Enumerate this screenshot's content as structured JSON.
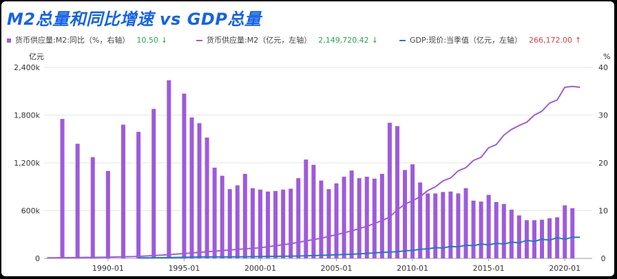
{
  "title": "M2总量和同比增速 vs GDP总量",
  "legend": [
    {
      "label": "货币供应量:M2:同比（%，右轴）",
      "value": "10.50",
      "arrow": "↓",
      "value_color": "#2aa34a",
      "swatch": "bar",
      "color": "#9d5bdc"
    },
    {
      "label": "货币供应量:M2（亿元，左轴）",
      "value": "2,149,720.42",
      "arrow": "↓",
      "value_color": "#2aa34a",
      "swatch": "line",
      "color": "#9d5bdc"
    },
    {
      "label": "GDP:现价:当季值（亿元，左轴）",
      "value": "266,172.00",
      "arrow": "↑",
      "value_color": "#e23b3b",
      "swatch": "line",
      "color": "#1d7ac9"
    }
  ],
  "left_axis_unit": "亿元",
  "right_axis_unit": "%",
  "colors": {
    "m2_yoy": "#9d5bdc",
    "m2_total": "#9d5bdc",
    "gdp": "#1d7ac9",
    "title": "#1663e6"
  },
  "chart_data": {
    "type": "bar",
    "title": "M2总量和同比增速 vs GDP总量",
    "x_tick_labels": [
      "1990-01",
      "1995-01",
      "2000-01",
      "2005-01",
      "2010-01",
      "2015-01",
      "2020-01"
    ],
    "x_range": [
      1985.8,
      2021.8
    ],
    "y_left": {
      "unit": "亿元",
      "range": [
        0,
        2400000
      ],
      "ticks": [
        0,
        600000,
        1200000,
        1800000,
        2400000
      ],
      "tick_labels": [
        "0",
        "600k",
        "1,200k",
        "1,800k",
        "2,400k"
      ]
    },
    "y_right": {
      "unit": "%",
      "range": [
        0,
        40
      ],
      "ticks": [
        0,
        10,
        20,
        30,
        40
      ],
      "tick_labels": [
        "0",
        "10",
        "20",
        "30",
        "40"
      ]
    },
    "grid": true,
    "legend_position": "top",
    "series": [
      {
        "name": "货币供应量:M2:同比（%，右轴）",
        "type": "bar",
        "axis": "right",
        "x": [
          1987.0,
          1988.0,
          1989.0,
          1990.0,
          1991.0,
          1992.0,
          1993.0,
          1994.0,
          1995.0,
          1995.5,
          1996.0,
          1996.5,
          1997.0,
          1997.5,
          1998.0,
          1998.5,
          1999.0,
          1999.5,
          2000.0,
          2000.5,
          2001.0,
          2001.5,
          2002.0,
          2002.5,
          2003.0,
          2003.5,
          2004.0,
          2004.5,
          2005.0,
          2005.5,
          2006.0,
          2006.5,
          2007.0,
          2007.5,
          2008.0,
          2008.5,
          2009.0,
          2009.5,
          2010.0,
          2010.5,
          2011.0,
          2011.5,
          2012.0,
          2012.5,
          2013.0,
          2013.5,
          2014.0,
          2014.5,
          2015.0,
          2015.5,
          2016.0,
          2016.5,
          2017.0,
          2017.5,
          2018.0,
          2018.5,
          2019.0,
          2019.5,
          2020.0,
          2020.5
        ],
        "values": [
          29.2,
          24.0,
          21.2,
          18.3,
          28.0,
          26.5,
          31.3,
          37.3,
          34.5,
          29.5,
          28.3,
          25.3,
          19.0,
          17.3,
          14.5,
          15.3,
          17.7,
          14.7,
          14.4,
          14.0,
          14.1,
          14.4,
          14.6,
          16.8,
          20.7,
          19.6,
          16.3,
          14.5,
          15.7,
          17.1,
          18.4,
          16.8,
          17.1,
          16.7,
          17.7,
          28.4,
          27.7,
          18.5,
          19.7,
          15.9,
          13.6,
          13.6,
          13.9,
          14.0,
          13.6,
          14.7,
          12.1,
          11.9,
          13.3,
          11.8,
          11.4,
          10.2,
          9.0,
          8.0,
          8.0,
          8.1,
          8.4,
          8.6,
          11.1,
          10.5
        ]
      },
      {
        "name": "货币供应量:M2（亿元，左轴）",
        "type": "line",
        "axis": "left",
        "x": [
          1986.0,
          1988.0,
          1990.0,
          1992.0,
          1994.0,
          1996.0,
          1998.0,
          2000.0,
          2002.0,
          2004.0,
          2005.0,
          2006.0,
          2007.0,
          2008.0,
          2008.5,
          2009.0,
          2009.5,
          2010.0,
          2010.5,
          2011.0,
          2011.5,
          2012.0,
          2012.5,
          2013.0,
          2013.5,
          2014.0,
          2014.5,
          2015.0,
          2015.5,
          2016.0,
          2016.5,
          2017.0,
          2017.5,
          2018.0,
          2018.5,
          2019.0,
          2019.5,
          2020.0,
          2020.5,
          2021.0
        ],
        "values": [
          6000,
          11000,
          15000,
          25000,
          47000,
          76000,
          105000,
          134000,
          185000,
          254000,
          298000,
          345000,
          403000,
          475000,
          520000,
          610000,
          680000,
          725000,
          775000,
          852000,
          900000,
          974000,
          1010000,
          1100000,
          1140000,
          1230000,
          1270000,
          1390000,
          1430000,
          1550000,
          1620000,
          1670000,
          1710000,
          1800000,
          1850000,
          1950000,
          1990000,
          2150000,
          2160000,
          2149720
        ]
      },
      {
        "name": "GDP:现价:当季值（亿元，左轴）",
        "type": "line",
        "axis": "left",
        "x": [
          1992.0,
          1993.0,
          1994.0,
          1995.0,
          1996.0,
          1997.0,
          1998.0,
          1999.0,
          2000.0,
          2001.0,
          2002.0,
          2003.0,
          2004.0,
          2005.0,
          2006.0,
          2007.0,
          2008.0,
          2009.0,
          2009.5,
          2010.0,
          2010.5,
          2011.0,
          2011.5,
          2012.0,
          2012.5,
          2013.0,
          2013.5,
          2014.0,
          2014.5,
          2015.0,
          2015.5,
          2016.0,
          2016.5,
          2017.0,
          2017.5,
          2018.0,
          2018.5,
          2019.0,
          2019.5,
          2020.0,
          2020.5,
          2021.0
        ],
        "values": [
          6000,
          8000,
          11000,
          14000,
          17000,
          19000,
          20000,
          21000,
          24000,
          26000,
          28000,
          32000,
          38000,
          45000,
          52000,
          63000,
          75000,
          85000,
          95000,
          100000,
          115000,
          120000,
          135000,
          130000,
          150000,
          145000,
          165000,
          160000,
          180000,
          170000,
          190000,
          180000,
          205000,
          195000,
          225000,
          215000,
          240000,
          230000,
          260000,
          240000,
          265000,
          266172
        ]
      }
    ]
  }
}
